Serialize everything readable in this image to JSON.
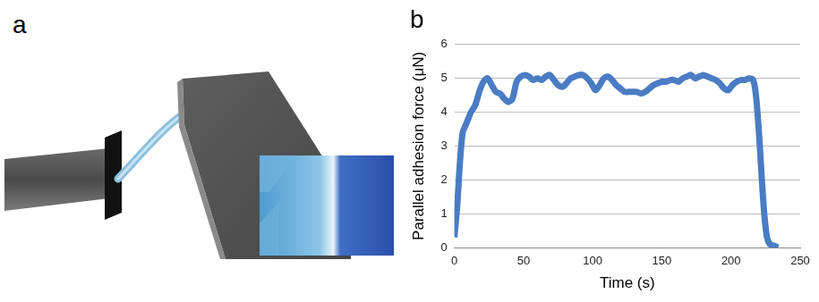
{
  "panel_labels": [
    "a",
    "b"
  ],
  "chart_data": {
    "type": "line",
    "x_label": "Time (s)",
    "y_label": "Parallel adhesion force (μN)",
    "x": [
      0,
      2,
      4,
      6,
      8,
      10,
      12,
      15,
      18,
      21,
      24,
      27,
      30,
      33,
      36,
      39,
      42,
      45,
      48,
      51,
      54,
      57,
      60,
      63,
      66,
      69,
      72,
      75,
      78,
      81,
      84,
      87,
      90,
      93,
      96,
      99,
      102,
      105,
      108,
      111,
      114,
      117,
      120,
      123,
      126,
      129,
      132,
      135,
      138,
      141,
      144,
      147,
      150,
      153,
      156,
      159,
      162,
      165,
      168,
      171,
      174,
      177,
      180,
      183,
      186,
      189,
      192,
      195,
      198,
      201,
      204,
      207,
      210,
      213,
      216,
      218,
      220,
      222,
      224,
      226,
      228,
      231,
      234
    ],
    "values": [
      0.3,
      1.2,
      2.5,
      3.4,
      3.6,
      3.8,
      4.0,
      4.2,
      4.6,
      4.9,
      5.0,
      4.8,
      4.6,
      4.55,
      4.4,
      4.3,
      4.4,
      4.9,
      5.05,
      5.1,
      5.05,
      4.95,
      5.0,
      4.95,
      5.05,
      5.1,
      4.95,
      4.8,
      4.75,
      4.85,
      5.0,
      5.05,
      5.1,
      5.1,
      5.0,
      4.85,
      4.65,
      4.8,
      5.0,
      5.05,
      4.95,
      4.8,
      4.7,
      4.6,
      4.6,
      4.6,
      4.6,
      4.55,
      4.6,
      4.7,
      4.8,
      4.85,
      4.9,
      4.9,
      4.95,
      4.95,
      4.9,
      5.0,
      5.05,
      5.1,
      5.0,
      5.05,
      5.1,
      5.05,
      5.0,
      4.95,
      4.85,
      4.7,
      4.65,
      4.8,
      4.9,
      4.95,
      4.95,
      5.0,
      4.95,
      4.5,
      3.5,
      2.2,
      1.0,
      0.3,
      0.1,
      0.05,
      0.0
    ],
    "color": "#4a7cc4",
    "xlim": [
      0,
      250
    ],
    "xticks": [
      0,
      50,
      100,
      150,
      200,
      250
    ],
    "ylim": [
      0,
      6
    ],
    "yticks": [
      0,
      1,
      2,
      3,
      4,
      5,
      6
    ],
    "grid": "y"
  }
}
